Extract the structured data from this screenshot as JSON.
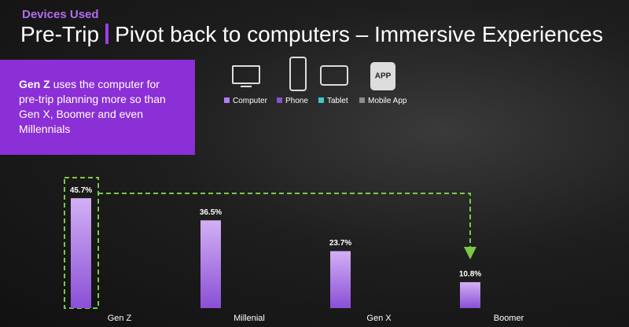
{
  "slide": {
    "label": "Devices Used",
    "title_left": "Pre-Trip",
    "title_right": "Pivot back to computers – Immersive Experiences",
    "callout_bold": "Gen Z",
    "callout_text": "uses the computer for pre-trip planning more so than Gen X, Boomer and even Millennials",
    "app_icon_label": "APP"
  },
  "chart_data": {
    "type": "bar",
    "categories": [
      "Gen Z",
      "Millenial",
      "Gen X",
      "Boomer"
    ],
    "series": [
      {
        "name": "Computer",
        "color": "#b27ef0",
        "values": [
          45.7,
          36.5,
          23.7,
          10.8
        ],
        "value_labels": [
          "45.7%",
          "36.5%",
          "23.7%",
          "10.8%"
        ]
      },
      {
        "name": "Phone",
        "color": "#8a4fd6",
        "values": [
          null,
          null,
          null,
          null
        ]
      },
      {
        "name": "Tablet",
        "color": "#3fc9c9",
        "values": [
          null,
          null,
          null,
          null
        ]
      },
      {
        "name": "Mobile App",
        "color": "#8c8c8c",
        "values": [
          null,
          null,
          null,
          null
        ]
      }
    ],
    "ylim": [
      0,
      50
    ]
  }
}
